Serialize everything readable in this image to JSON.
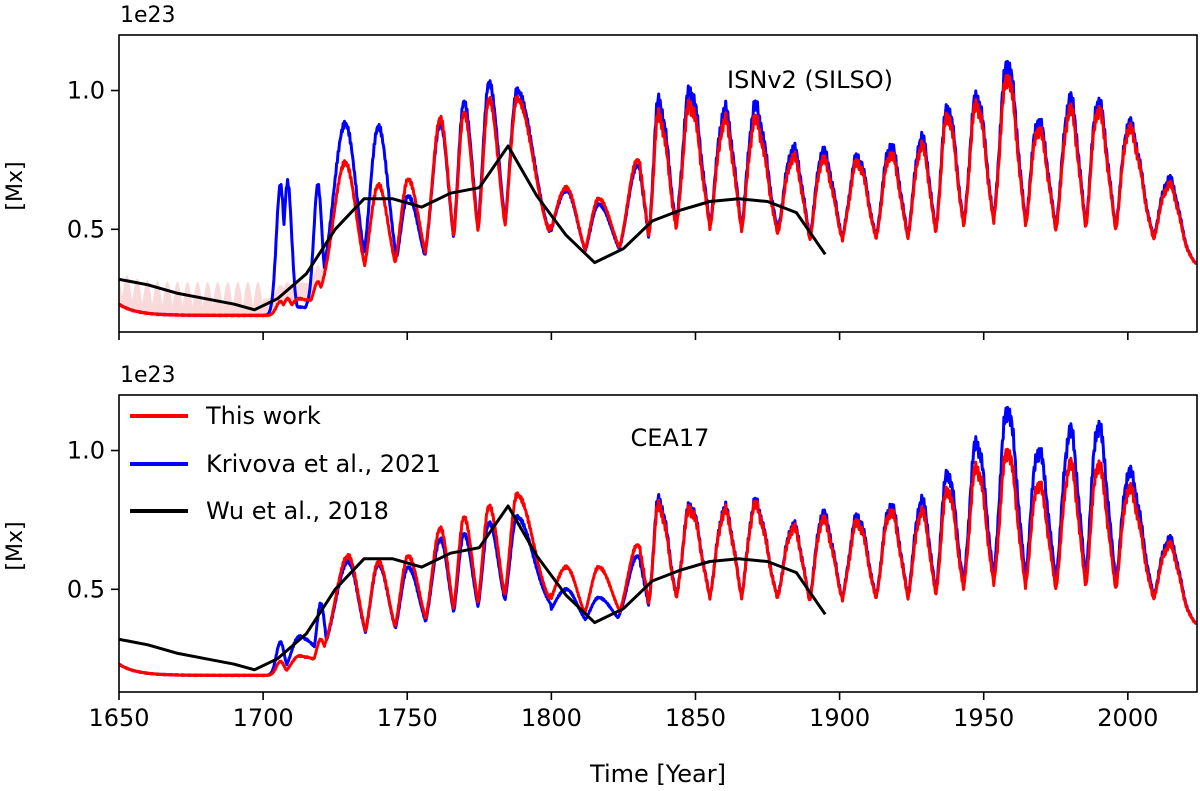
{
  "figure": {
    "xlabel": "Time [Year]",
    "legend": [
      {
        "label": "This work",
        "color": "#ff0000"
      },
      {
        "label": "Krivova et al., 2021",
        "color": "#0000ff"
      },
      {
        "label": "Wu et al., 2018",
        "color": "#000000"
      }
    ]
  },
  "chart_data": [
    {
      "type": "line",
      "title": "ISNv2 (SILSO)",
      "ylabel": "[Mx]",
      "offset_text": "1e23",
      "xlim": [
        1650,
        2024
      ],
      "ylim": [
        0.13,
        1.2
      ],
      "xticks": [
        1650,
        1700,
        1750,
        1800,
        1850,
        1900,
        1950,
        2000
      ],
      "yticks": [
        0.5,
        1.0
      ],
      "grid": false,
      "cycles": [
        {
          "t": 1712.5,
          "r": 0.25,
          "k": 0.22
        },
        {
          "t": 1728.5,
          "r": 0.74,
          "k": 0.88
        },
        {
          "t": 1740.0,
          "r": 0.66,
          "k": 0.87
        },
        {
          "t": 1750.3,
          "r": 0.68,
          "k": 0.62
        },
        {
          "t": 1761.5,
          "r": 0.9,
          "k": 0.88
        },
        {
          "t": 1769.7,
          "r": 0.92,
          "k": 0.96
        },
        {
          "t": 1778.4,
          "r": 0.97,
          "k": 1.03
        },
        {
          "t": 1788.1,
          "r": 0.97,
          "k": 1.0
        },
        {
          "t": 1805.2,
          "r": 0.65,
          "k": 0.64
        },
        {
          "t": 1816.4,
          "r": 0.61,
          "k": 0.59
        },
        {
          "t": 1829.9,
          "r": 0.75,
          "k": 0.73
        },
        {
          "t": 1837.2,
          "r": 0.91,
          "k": 0.96
        },
        {
          "t": 1848.1,
          "r": 0.95,
          "k": 1.0
        },
        {
          "t": 1860.1,
          "r": 0.89,
          "k": 0.93
        },
        {
          "t": 1870.6,
          "r": 0.89,
          "k": 0.94
        },
        {
          "t": 1883.9,
          "r": 0.76,
          "k": 0.79
        },
        {
          "t": 1894.1,
          "r": 0.75,
          "k": 0.78
        },
        {
          "t": 1906.2,
          "r": 0.74,
          "k": 0.76
        },
        {
          "t": 1917.6,
          "r": 0.77,
          "k": 0.8
        },
        {
          "t": 1928.4,
          "r": 0.8,
          "k": 0.83
        },
        {
          "t": 1937.4,
          "r": 0.91,
          "k": 0.94
        },
        {
          "t": 1947.5,
          "r": 0.95,
          "k": 0.98
        },
        {
          "t": 1958.2,
          "r": 1.05,
          "k": 1.1
        },
        {
          "t": 1968.9,
          "r": 0.86,
          "k": 0.89
        },
        {
          "t": 1979.9,
          "r": 0.93,
          "k": 0.97
        },
        {
          "t": 1989.6,
          "r": 0.93,
          "k": 0.96
        },
        {
          "t": 2000.3,
          "r": 0.86,
          "k": 0.88
        },
        {
          "t": 2014.3,
          "r": 0.66,
          "k": 0.68
        }
      ],
      "extra_peaks": [
        {
          "t": 1706.0,
          "r": 0.24,
          "k": 0.66
        },
        {
          "t": 1708.5,
          "r": 0.25,
          "k": 0.67
        },
        {
          "t": 1719.0,
          "r": 0.31,
          "k": 0.66
        }
      ],
      "wu_2018": {
        "x": [
          1650,
          1660,
          1670,
          1680,
          1690,
          1697,
          1705,
          1715,
          1725,
          1735,
          1745,
          1755,
          1765,
          1775,
          1785,
          1795,
          1805,
          1815,
          1825,
          1835,
          1845,
          1855,
          1865,
          1875,
          1885,
          1895
        ],
        "y": [
          0.32,
          0.3,
          0.27,
          0.25,
          0.23,
          0.21,
          0.25,
          0.34,
          0.5,
          0.61,
          0.61,
          0.58,
          0.63,
          0.65,
          0.8,
          0.62,
          0.48,
          0.38,
          0.43,
          0.53,
          0.57,
          0.6,
          0.61,
          0.6,
          0.56,
          0.41
        ]
      }
    },
    {
      "type": "line",
      "title": "CEA17",
      "ylabel": "[Mx]",
      "offset_text": "1e23",
      "xlim": [
        1650,
        2024
      ],
      "ylim": [
        0.13,
        1.2
      ],
      "xticks": [
        1650,
        1700,
        1750,
        1800,
        1850,
        1900,
        1950,
        2000
      ],
      "yticks": [
        0.5,
        1.0
      ],
      "grid": false,
      "cycles": [
        {
          "t": 1712.5,
          "r": 0.26,
          "k": 0.33
        },
        {
          "t": 1729.5,
          "r": 0.62,
          "k": 0.6
        },
        {
          "t": 1740.0,
          "r": 0.6,
          "k": 0.59
        },
        {
          "t": 1750.3,
          "r": 0.62,
          "k": 0.58
        },
        {
          "t": 1761.5,
          "r": 0.72,
          "k": 0.68
        },
        {
          "t": 1769.7,
          "r": 0.76,
          "k": 0.7
        },
        {
          "t": 1778.4,
          "r": 0.8,
          "k": 0.74
        },
        {
          "t": 1788.1,
          "r": 0.84,
          "k": 0.76
        },
        {
          "t": 1805.2,
          "r": 0.58,
          "k": 0.5
        },
        {
          "t": 1816.4,
          "r": 0.58,
          "k": 0.47
        },
        {
          "t": 1829.9,
          "r": 0.66,
          "k": 0.62
        },
        {
          "t": 1837.2,
          "r": 0.8,
          "k": 0.82
        },
        {
          "t": 1848.1,
          "r": 0.79,
          "k": 0.8
        },
        {
          "t": 1860.1,
          "r": 0.78,
          "k": 0.79
        },
        {
          "t": 1870.6,
          "r": 0.8,
          "k": 0.81
        },
        {
          "t": 1883.9,
          "r": 0.72,
          "k": 0.73
        },
        {
          "t": 1894.1,
          "r": 0.75,
          "k": 0.77
        },
        {
          "t": 1906.2,
          "r": 0.74,
          "k": 0.76
        },
        {
          "t": 1917.6,
          "r": 0.78,
          "k": 0.8
        },
        {
          "t": 1928.4,
          "r": 0.78,
          "k": 0.82
        },
        {
          "t": 1937.4,
          "r": 0.86,
          "k": 0.92
        },
        {
          "t": 1947.5,
          "r": 0.94,
          "k": 1.03
        },
        {
          "t": 1958.2,
          "r": 1.0,
          "k": 1.15
        },
        {
          "t": 1968.9,
          "r": 0.88,
          "k": 1.0
        },
        {
          "t": 1979.9,
          "r": 0.95,
          "k": 1.07
        },
        {
          "t": 1989.6,
          "r": 0.95,
          "k": 1.09
        },
        {
          "t": 2000.3,
          "r": 0.86,
          "k": 0.92
        },
        {
          "t": 2014.3,
          "r": 0.66,
          "k": 0.68
        }
      ],
      "extra_peaks": [
        {
          "t": 1706.0,
          "r": 0.24,
          "k": 0.31
        },
        {
          "t": 1720.0,
          "r": 0.32,
          "k": 0.45
        }
      ],
      "wu_2018": {
        "x": [
          1650,
          1660,
          1670,
          1680,
          1690,
          1697,
          1705,
          1715,
          1725,
          1735,
          1745,
          1755,
          1765,
          1775,
          1785,
          1795,
          1805,
          1815,
          1825,
          1835,
          1845,
          1855,
          1865,
          1875,
          1885,
          1895
        ],
        "y": [
          0.32,
          0.3,
          0.27,
          0.25,
          0.23,
          0.21,
          0.25,
          0.34,
          0.5,
          0.61,
          0.61,
          0.58,
          0.63,
          0.65,
          0.8,
          0.62,
          0.48,
          0.38,
          0.43,
          0.53,
          0.57,
          0.6,
          0.61,
          0.6,
          0.56,
          0.41
        ]
      }
    }
  ]
}
